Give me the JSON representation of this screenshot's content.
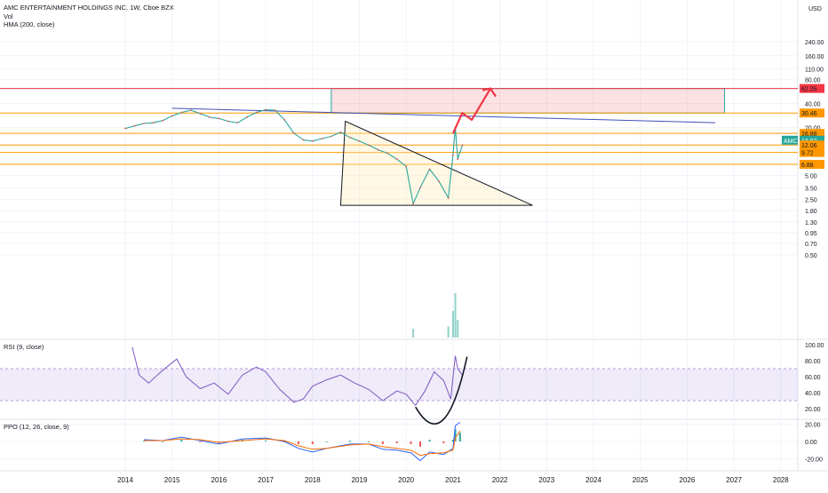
{
  "header": {
    "symbol_line": "AMC ENTERTAINMENT HOLDINGS INC, 1W, Cboe BZX",
    "vol_label": "Vol",
    "hma_label": "HMA (200, close)",
    "currency": "USD"
  },
  "chart_data": [
    {
      "type": "line",
      "name": "price-pane",
      "y_scale": "log",
      "y_ticks": [
        "240.00",
        "160.00",
        "110.00",
        "80.00",
        "60.00",
        "40.00",
        "20.00",
        "5.00",
        "3.50",
        "2.50",
        "1.80",
        "1.30",
        "0.95",
        "0.70",
        "0.50"
      ],
      "y_tick_values": [
        240,
        160,
        110,
        80,
        60,
        40,
        20,
        5,
        3.5,
        2.5,
        1.8,
        1.3,
        0.95,
        0.7,
        0.5
      ],
      "x_ticks": [
        "2014",
        "2015",
        "2016",
        "2017",
        "2018",
        "2019",
        "2020",
        "2021",
        "2022",
        "2023",
        "2024",
        "2025",
        "2026",
        "2027",
        "2028"
      ],
      "x_tick_values": [
        2014,
        2015,
        2016,
        2017,
        2018,
        2019,
        2020,
        2021,
        2022,
        2023,
        2024,
        2025,
        2026,
        2027,
        2028
      ],
      "price_series": [
        [
          2014.0,
          19.5
        ],
        [
          2014.2,
          21
        ],
        [
          2014.4,
          22.5
        ],
        [
          2014.6,
          23
        ],
        [
          2014.8,
          24.5
        ],
        [
          2015.0,
          28
        ],
        [
          2015.2,
          31
        ],
        [
          2015.4,
          33
        ],
        [
          2015.6,
          30
        ],
        [
          2015.8,
          27
        ],
        [
          2016.0,
          26
        ],
        [
          2016.2,
          24
        ],
        [
          2016.4,
          23
        ],
        [
          2016.6,
          27
        ],
        [
          2016.8,
          31
        ],
        [
          2017.0,
          33.5
        ],
        [
          2017.2,
          33
        ],
        [
          2017.4,
          25
        ],
        [
          2017.6,
          17
        ],
        [
          2017.8,
          14
        ],
        [
          2018.0,
          13.5
        ],
        [
          2018.2,
          14.5
        ],
        [
          2018.4,
          15.5
        ],
        [
          2018.6,
          17.5
        ],
        [
          2018.8,
          15
        ],
        [
          2019.0,
          13.5
        ],
        [
          2019.2,
          12
        ],
        [
          2019.4,
          10.5
        ],
        [
          2019.6,
          9.5
        ],
        [
          2019.8,
          8
        ],
        [
          2020.0,
          6.5
        ],
        [
          2020.15,
          2.2
        ],
        [
          2020.3,
          3.5
        ],
        [
          2020.5,
          6
        ],
        [
          2020.7,
          4.2
        ],
        [
          2020.9,
          2.6
        ],
        [
          2021.0,
          9
        ],
        [
          2021.05,
          20
        ],
        [
          2021.1,
          8
        ],
        [
          2021.2,
          12
        ]
      ],
      "levels": [
        {
          "label": "62.05",
          "value": 62.05,
          "color": "#f23645"
        },
        {
          "label": "30.46",
          "value": 30.46,
          "color": "#ff9800"
        },
        {
          "label": "16.88",
          "value": 16.88,
          "color": "#ff9800"
        },
        {
          "label": "13.87",
          "value": 13.87,
          "color": "#26a69a",
          "name": "AMC"
        },
        {
          "label": "12.06",
          "value": 12.06,
          "color": "#ff9800"
        },
        {
          "label": "9.72",
          "value": 9.72,
          "color": "#ff9800"
        },
        {
          "label": "6.88",
          "value": 6.88,
          "color": "#ff9800"
        }
      ],
      "target_zone": {
        "x_from": 2018.4,
        "x_to": 2026.8,
        "y_from": 30.46,
        "y_to": 62.05
      },
      "projection_path": [
        [
          2021.0,
          16.88
        ],
        [
          2021.2,
          30.46
        ],
        [
          2021.4,
          25
        ],
        [
          2021.8,
          62.05
        ]
      ],
      "trendline": {
        "from": [
          2015.0,
          35
        ],
        "to": [
          2026.6,
          23
        ]
      },
      "triangle": [
        [
          2018.7,
          24
        ],
        [
          2018.6,
          2.1
        ],
        [
          2022.7,
          2.1
        ]
      ],
      "volume": [
        [
          2020.15,
          0.2
        ],
        [
          2020.9,
          0.25
        ],
        [
          2021.0,
          0.6
        ],
        [
          2021.05,
          1.0
        ],
        [
          2021.1,
          0.4
        ]
      ]
    },
    {
      "type": "line",
      "name": "rsi-pane",
      "title": "RSI (9, close)",
      "y_ticks": [
        "100.00",
        "80.00",
        "60.00",
        "40.00",
        "20.00"
      ],
      "y_tick_values": [
        100,
        80,
        60,
        40,
        20
      ],
      "band": [
        30,
        70
      ],
      "series": [
        {
          "values": [
            [
              2014.15,
              97
            ],
            [
              2014.3,
              62
            ],
            [
              2014.5,
              52
            ],
            [
              2014.8,
              68
            ],
            [
              2015.1,
              82
            ],
            [
              2015.3,
              60
            ],
            [
              2015.6,
              45
            ],
            [
              2015.9,
              52
            ],
            [
              2016.2,
              38
            ],
            [
              2016.5,
              62
            ],
            [
              2016.8,
              72
            ],
            [
              2017.0,
              66
            ],
            [
              2017.3,
              44
            ],
            [
              2017.6,
              28
            ],
            [
              2017.8,
              32
            ],
            [
              2018.0,
              48
            ],
            [
              2018.3,
              56
            ],
            [
              2018.6,
              62
            ],
            [
              2018.9,
              52
            ],
            [
              2019.2,
              44
            ],
            [
              2019.5,
              30
            ],
            [
              2019.8,
              42
            ],
            [
              2020.0,
              38
            ],
            [
              2020.2,
              24
            ],
            [
              2020.4,
              42
            ],
            [
              2020.6,
              66
            ],
            [
              2020.8,
              55
            ],
            [
              2020.95,
              32
            ],
            [
              2021.05,
              86
            ],
            [
              2021.1,
              70
            ],
            [
              2021.2,
              62
            ]
          ]
        }
      ],
      "curve": {
        "from": [
          2020.2,
          22
        ],
        "vertex": [
          2020.6,
          20
        ],
        "to": [
          2021.3,
          85
        ]
      }
    },
    {
      "type": "line",
      "name": "ppo-pane",
      "title": "PPO (12, 26, close, 9)",
      "y_ticks": [
        "20.00",
        "0.00",
        "-20.00"
      ],
      "y_tick_values": [
        20,
        0,
        -20
      ],
      "series": [
        {
          "color": "#2962ff",
          "values": [
            [
              2014.4,
              2
            ],
            [
              2014.8,
              1
            ],
            [
              2015.2,
              5
            ],
            [
              2015.6,
              1
            ],
            [
              2016.0,
              -3
            ],
            [
              2016.5,
              3
            ],
            [
              2017.0,
              4
            ],
            [
              2017.4,
              0
            ],
            [
              2017.7,
              -8
            ],
            [
              2018.0,
              -12
            ],
            [
              2018.3,
              -8
            ],
            [
              2018.8,
              -3
            ],
            [
              2019.2,
              -3
            ],
            [
              2019.5,
              -9
            ],
            [
              2019.8,
              -10
            ],
            [
              2020.1,
              -13
            ],
            [
              2020.3,
              -22
            ],
            [
              2020.5,
              -12
            ],
            [
              2020.8,
              -15
            ],
            [
              2021.0,
              -8
            ],
            [
              2021.05,
              18
            ],
            [
              2021.15,
              22
            ]
          ]
        },
        {
          "color": "#ff6d00",
          "values": [
            [
              2014.4,
              1
            ],
            [
              2014.8,
              1
            ],
            [
              2015.2,
              3
            ],
            [
              2015.6,
              2
            ],
            [
              2016.0,
              -1
            ],
            [
              2016.5,
              1
            ],
            [
              2017.0,
              3
            ],
            [
              2017.4,
              1
            ],
            [
              2017.7,
              -5
            ],
            [
              2018.0,
              -9
            ],
            [
              2018.3,
              -8
            ],
            [
              2018.8,
              -4
            ],
            [
              2019.2,
              -3
            ],
            [
              2019.5,
              -6
            ],
            [
              2019.8,
              -8
            ],
            [
              2020.1,
              -10
            ],
            [
              2020.3,
              -16
            ],
            [
              2020.5,
              -14
            ],
            [
              2020.8,
              -13
            ],
            [
              2021.0,
              -10
            ],
            [
              2021.05,
              4
            ],
            [
              2021.15,
              12
            ]
          ]
        }
      ]
    }
  ]
}
